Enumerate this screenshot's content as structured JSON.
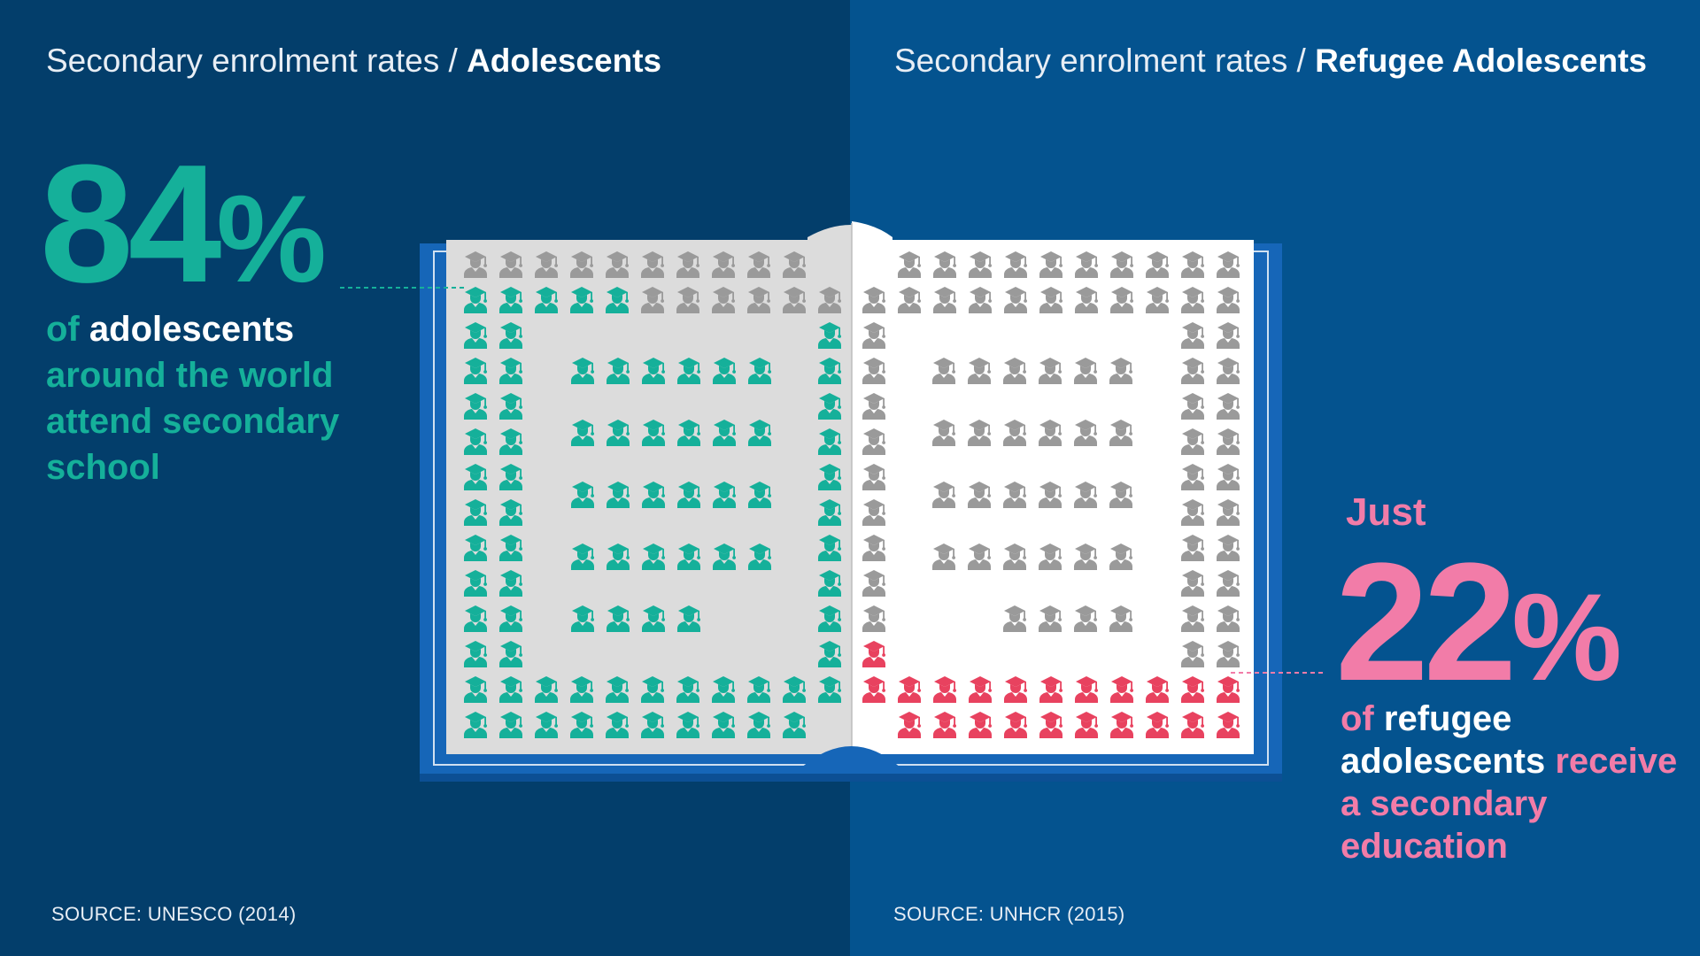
{
  "colors": {
    "bg_left": "#033e6b",
    "bg_right": "#04538f",
    "teal": "#15b09a",
    "pink": "#f27ca8",
    "red_icon": "#e8425f",
    "grey_icon": "#9a9a9a",
    "book_cover": "#1666b8",
    "page_left": "#dcdcdc",
    "page_right": "#ffffff"
  },
  "left": {
    "heading_prefix": "Secondary enrolment rates / ",
    "heading_bold": "Adolescents",
    "big_number": "84",
    "big_pct": "%",
    "text_of": "of",
    "text_adolescents": "adolescents",
    "text_rest": "around the world attend secondary school",
    "source": "SOURCE: UNESCO (2014)"
  },
  "right": {
    "heading_prefix": "Secondary enrolment rates / ",
    "heading_bold": "Refugee Adolescents",
    "just": "Just",
    "big_number": "22",
    "big_pct": "%",
    "text_of": "of",
    "text_refugee": "refugee adolescents",
    "text_rest": "receive a secondary education",
    "source": "SOURCE: UNHCR (2015)"
  },
  "icons": {
    "graduate": "graduate-student-icon"
  },
  "chart_data": {
    "type": "pictogram",
    "categories": [
      "Adolescents",
      "Refugee Adolescents"
    ],
    "values": [
      84,
      22
    ],
    "unit": "%",
    "icon_count_per_category": 100
  }
}
